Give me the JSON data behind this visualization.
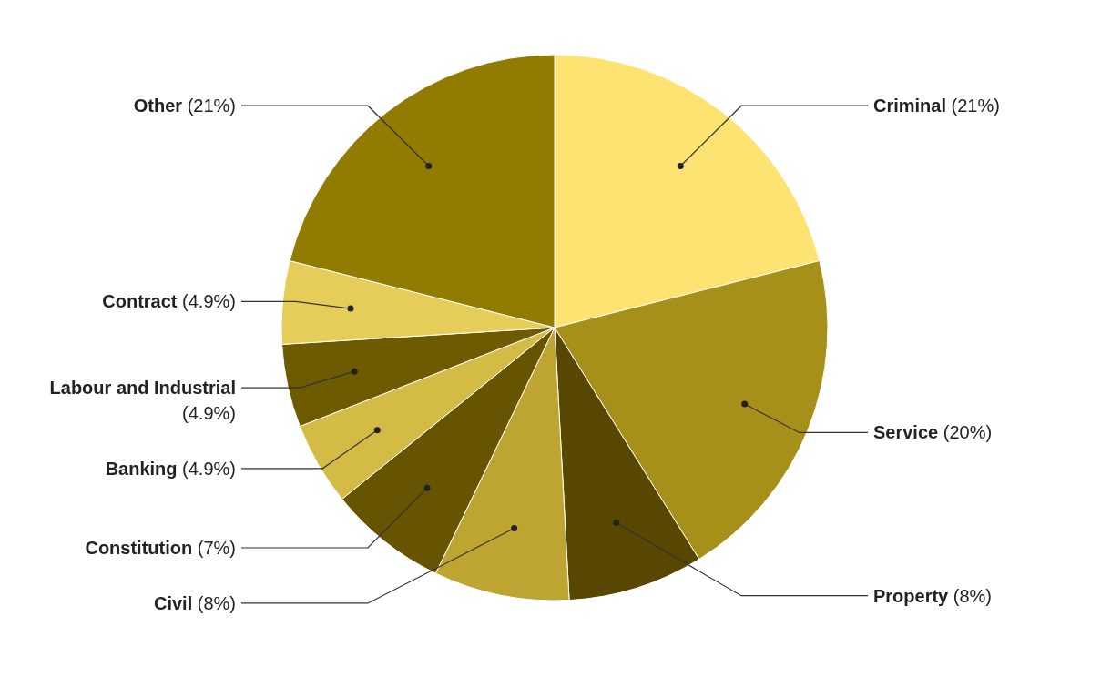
{
  "chart_data": {
    "type": "pie",
    "categories": [
      "Criminal",
      "Service",
      "Property",
      "Civil",
      "Constitution",
      "Banking",
      "Labour and Industrial",
      "Contract",
      "Other"
    ],
    "values": [
      21,
      20,
      8,
      8,
      7,
      4.9,
      4.9,
      4.9,
      21
    ],
    "value_labels": [
      "(21%)",
      "(20%)",
      "(8%)",
      "(8%)",
      "(7%)",
      "(4.9%)",
      "(4.9%)",
      "(4.9%)",
      "(21%)"
    ],
    "colors": [
      "#fee373",
      "#a69019",
      "#574700",
      "#bea532",
      "#665400",
      "#d4bb46",
      "#6e5a00",
      "#e6cd5a",
      "#917b00"
    ]
  }
}
